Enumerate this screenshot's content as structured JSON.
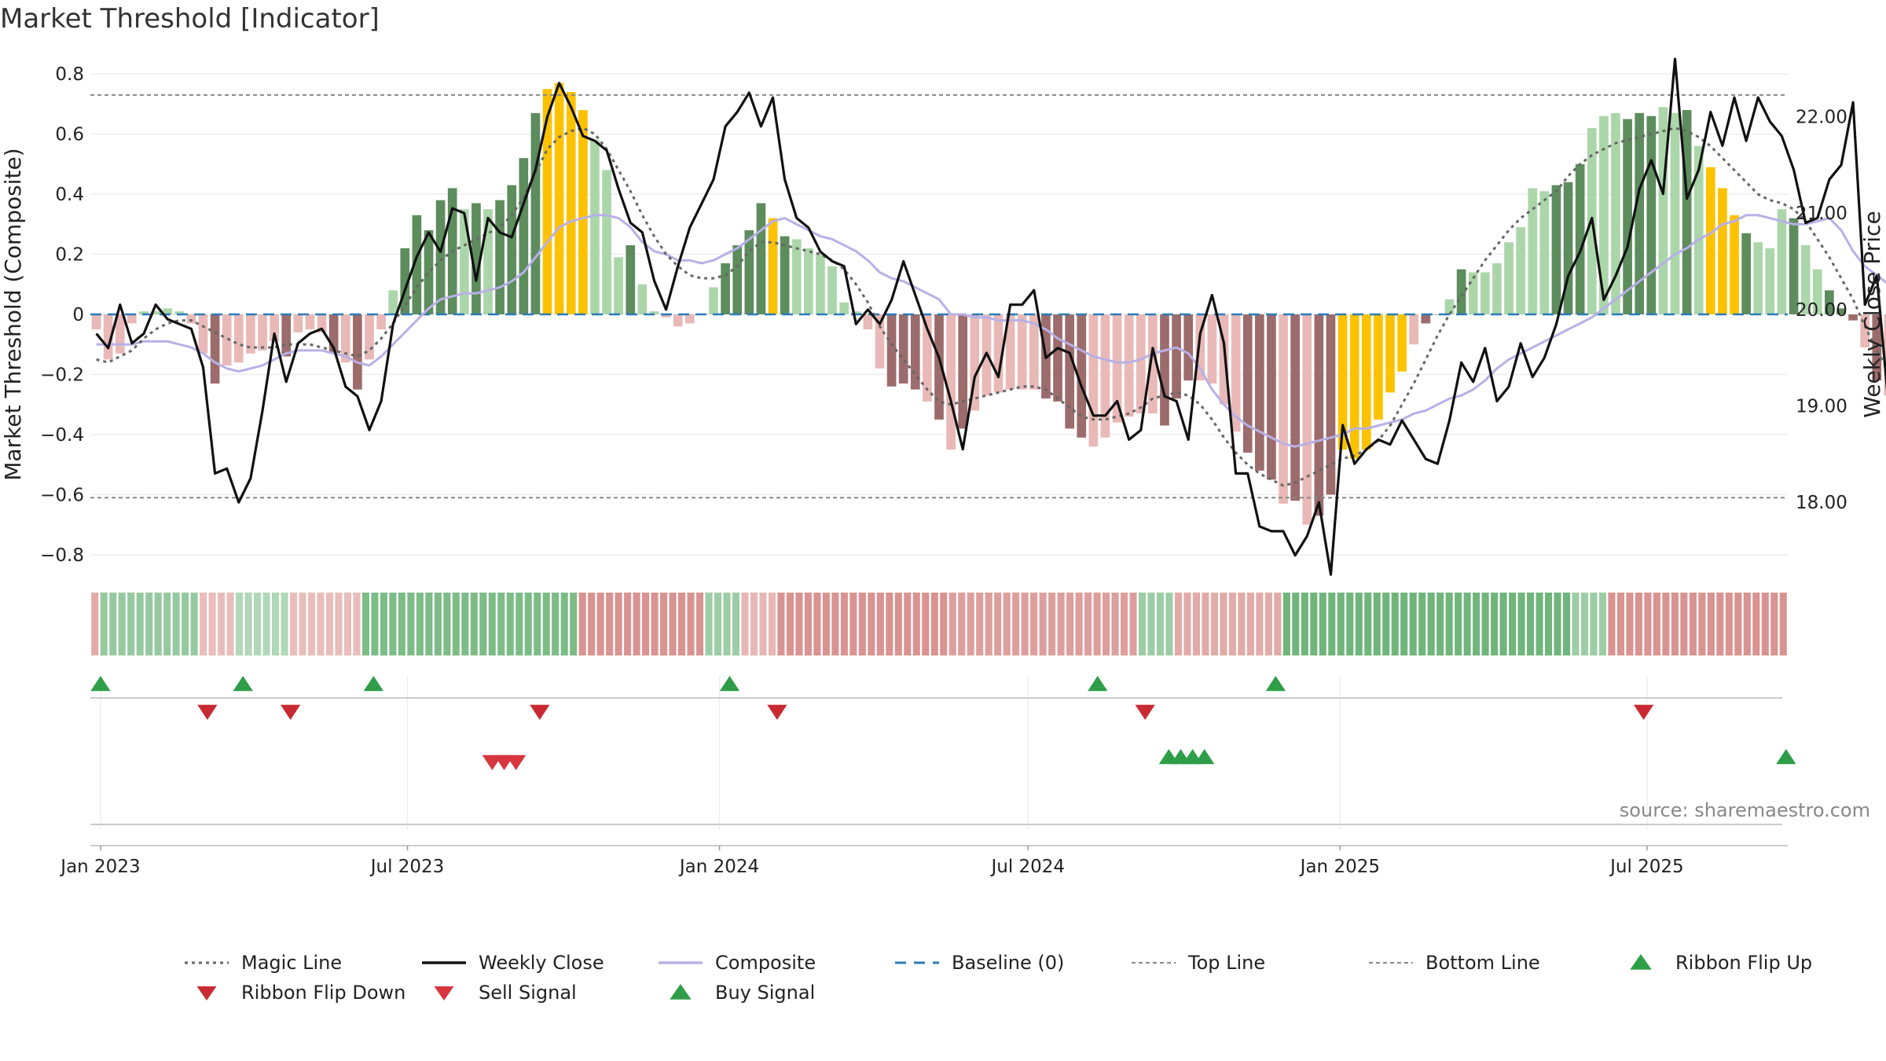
{
  "chart_data": {
    "type": "bar",
    "title": "Market Threshold [Indicator]",
    "ylabel": "Market Threshold (Composite)",
    "y2label": "Weekly Close Price",
    "ylim": [
      -0.85,
      0.85
    ],
    "y2lim": [
      17.3,
      22.6
    ],
    "yticks": [
      -0.8,
      -0.6,
      -0.4,
      -0.2,
      0,
      0.2,
      0.4,
      0.6,
      0.8
    ],
    "ytick_labels": [
      "−0.8",
      "−0.6",
      "−0.4",
      "−0.2",
      "0",
      "0.2",
      "0.4",
      "0.6",
      "0.8"
    ],
    "y2ticks": [
      18,
      19,
      20,
      21,
      22
    ],
    "y2tick_labels": [
      "18.00",
      "19.00",
      "20.00",
      "21.00",
      "22.00"
    ],
    "x_start": "2022-12-26",
    "x_end": "2025-09-22",
    "xticks": [
      "2023-01-01",
      "2023-07-01",
      "2024-01-01",
      "2024-07-01",
      "2025-01-01",
      "2025-07-01"
    ],
    "xtick_labels": [
      "Jan 2023",
      "Jul 2023",
      "Jan 2024",
      "Jul 2024",
      "Jan 2025",
      "Jul 2025"
    ],
    "top_line": 0.73,
    "bottom_line": -0.61,
    "baseline": 0,
    "grid": true,
    "legend_position": "bottom",
    "colors": {
      "bull_strong": "#5d8c5d",
      "bull_weak": "#abd6a9",
      "bear_strong": "#9c6b6b",
      "bear_weak": "#e9b9b7",
      "extreme": "#fcc200",
      "weekly_close": "#111111",
      "composite": "#b8b0e6",
      "magic_line": "#666666",
      "baseline": "#2b7bb9",
      "threshold_lines": "#888888",
      "buy": "#2e9e48",
      "sell": "#d7353f"
    },
    "composite_bars": [
      -0.05,
      -0.15,
      -0.13,
      -0.03,
      0.01,
      0.01,
      0.02,
      0.01,
      -0.03,
      -0.13,
      -0.23,
      -0.17,
      -0.16,
      -0.13,
      -0.12,
      -0.09,
      -0.14,
      -0.06,
      -0.05,
      -0.06,
      -0.13,
      -0.16,
      -0.25,
      -0.15,
      -0.05,
      0.08,
      0.22,
      0.33,
      0.28,
      0.38,
      0.42,
      0.35,
      0.37,
      0.35,
      0.38,
      0.43,
      0.52,
      0.67,
      0.75,
      0.77,
      0.74,
      0.68,
      0.58,
      0.48,
      0.19,
      0.23,
      0.1,
      0.01,
      -0.01,
      -0.04,
      -0.03,
      0.0,
      0.09,
      0.17,
      0.23,
      0.28,
      0.37,
      0.32,
      0.26,
      0.25,
      0.22,
      0.2,
      0.16,
      0.04,
      0.01,
      -0.05,
      -0.18,
      -0.24,
      -0.23,
      -0.25,
      -0.29,
      -0.35,
      -0.45,
      -0.38,
      -0.32,
      -0.27,
      -0.26,
      -0.25,
      -0.25,
      -0.25,
      -0.28,
      -0.29,
      -0.38,
      -0.41,
      -0.44,
      -0.41,
      -0.36,
      -0.34,
      -0.33,
      -0.33,
      -0.37,
      -0.28,
      -0.22,
      -0.22,
      -0.23,
      -0.3,
      -0.39,
      -0.46,
      -0.52,
      -0.55,
      -0.63,
      -0.62,
      -0.7,
      -0.67,
      -0.6,
      -0.45,
      -0.48,
      -0.45,
      -0.35,
      -0.26,
      -0.19,
      -0.1,
      -0.03,
      0.0,
      0.05,
      0.15,
      0.14,
      0.14,
      0.17,
      0.24,
      0.29,
      0.42,
      0.41,
      0.43,
      0.44,
      0.5,
      0.62,
      0.66,
      0.67,
      0.65,
      0.67,
      0.66,
      0.69,
      0.67,
      0.68,
      0.56,
      0.49,
      0.42,
      0.33,
      0.27,
      0.24,
      0.22,
      0.35,
      0.32,
      0.23,
      0.15,
      0.08,
      0.02,
      -0.02,
      -0.11,
      -0.22,
      -0.27,
      -0.37,
      -0.37,
      -0.38,
      -0.43,
      -0.48,
      -0.55,
      -0.64
    ],
    "bar_states": "nnwwwwwwnnsnnnnnsnnnsnsnnwssssswswsssseeeewwwswwwnnnwsssseswwwwwwwnssswsnsnnnnnnssssnnnnnnsssnnnnsssnsnsseeeeeenssnsnnnwwwwssswwwssswwsweeeswwwswwssswswwwwnsssssnsse",
    "weekly_close": [
      19.75,
      19.6,
      20.05,
      19.65,
      19.75,
      20.05,
      19.9,
      19.85,
      19.8,
      19.4,
      18.3,
      18.35,
      18.0,
      18.25,
      18.95,
      19.75,
      19.25,
      19.65,
      19.75,
      19.8,
      19.6,
      19.2,
      19.1,
      18.75,
      19.05,
      19.85,
      20.2,
      20.55,
      20.8,
      20.6,
      21.05,
      21.0,
      20.3,
      20.95,
      20.8,
      20.75,
      21.1,
      21.45,
      22.0,
      22.35,
      22.1,
      21.8,
      21.75,
      21.65,
      21.25,
      20.9,
      20.8,
      20.3,
      20.0,
      20.45,
      20.85,
      21.1,
      21.35,
      21.9,
      22.05,
      22.25,
      21.9,
      22.2,
      21.35,
      20.95,
      20.85,
      20.6,
      20.5,
      20.45,
      19.85,
      20.0,
      19.85,
      20.1,
      20.5,
      20.15,
      19.8,
      19.5,
      19.05,
      18.55,
      19.3,
      19.55,
      19.3,
      20.05,
      20.05,
      20.2,
      19.5,
      19.6,
      19.55,
      19.2,
      18.9,
      18.9,
      19.05,
      18.65,
      18.75,
      19.6,
      19.1,
      19.05,
      18.65,
      19.75,
      20.15,
      19.65,
      18.3,
      18.3,
      17.75,
      17.7,
      17.7,
      17.45,
      17.65,
      18.0,
      17.25,
      18.8,
      18.4,
      18.55,
      18.65,
      18.6,
      18.85,
      18.65,
      18.45,
      18.4,
      18.85,
      19.45,
      19.25,
      19.6,
      19.05,
      19.2,
      19.65,
      19.3,
      19.5,
      19.85,
      20.35,
      20.6,
      20.95,
      20.1,
      20.35,
      20.65,
      21.25,
      21.55,
      21.2,
      22.6,
      21.15,
      21.45,
      22.05,
      21.7,
      22.2,
      21.75,
      22.2,
      21.95,
      21.8,
      21.45,
      20.9,
      20.95,
      21.35,
      21.5,
      22.15,
      20.05,
      20.35,
      19.0,
      19.5,
      19.6,
      19.15,
      19.35,
      19.4,
      19.5,
      19.15,
      18.8,
      18.25
    ],
    "composite_line": [
      -0.1,
      -0.1,
      -0.1,
      -0.1,
      -0.09,
      -0.09,
      -0.09,
      -0.1,
      -0.11,
      -0.13,
      -0.16,
      -0.18,
      -0.19,
      -0.18,
      -0.17,
      -0.15,
      -0.13,
      -0.12,
      -0.12,
      -0.12,
      -0.13,
      -0.14,
      -0.16,
      -0.17,
      -0.14,
      -0.1,
      -0.06,
      -0.02,
      0.02,
      0.05,
      0.06,
      0.07,
      0.07,
      0.08,
      0.09,
      0.11,
      0.14,
      0.19,
      0.24,
      0.29,
      0.31,
      0.32,
      0.33,
      0.33,
      0.32,
      0.29,
      0.24,
      0.21,
      0.2,
      0.18,
      0.18,
      0.17,
      0.18,
      0.2,
      0.22,
      0.25,
      0.28,
      0.31,
      0.32,
      0.3,
      0.28,
      0.26,
      0.25,
      0.23,
      0.21,
      0.18,
      0.14,
      0.12,
      0.11,
      0.09,
      0.07,
      0.05,
      0.0,
      -0.0,
      -0.01,
      -0.01,
      -0.02,
      -0.02,
      -0.02,
      -0.03,
      -0.05,
      -0.08,
      -0.1,
      -0.12,
      -0.14,
      -0.15,
      -0.16,
      -0.16,
      -0.15,
      -0.13,
      -0.12,
      -0.11,
      -0.13,
      -0.18,
      -0.25,
      -0.3,
      -0.34,
      -0.37,
      -0.39,
      -0.41,
      -0.43,
      -0.44,
      -0.43,
      -0.42,
      -0.41,
      -0.4,
      -0.38,
      -0.38,
      -0.37,
      -0.36,
      -0.35,
      -0.33,
      -0.32,
      -0.3,
      -0.28,
      -0.27,
      -0.25,
      -0.22,
      -0.18,
      -0.15,
      -0.13,
      -0.11,
      -0.09,
      -0.07,
      -0.05,
      -0.03,
      -0.01,
      0.02,
      0.05,
      0.08,
      0.11,
      0.14,
      0.17,
      0.2,
      0.22,
      0.25,
      0.27,
      0.3,
      0.31,
      0.33,
      0.33,
      0.32,
      0.31,
      0.3,
      0.3,
      0.31,
      0.32,
      0.28,
      0.21,
      0.16,
      0.13,
      0.1,
      0.07,
      0.03,
      0.01,
      0.0,
      -0.03,
      -0.08,
      -0.14
    ],
    "magic_line": [
      -0.15,
      -0.16,
      -0.14,
      -0.12,
      -0.08,
      -0.05,
      -0.03,
      -0.02,
      -0.02,
      -0.04,
      -0.06,
      -0.08,
      -0.1,
      -0.11,
      -0.11,
      -0.11,
      -0.1,
      -0.1,
      -0.1,
      -0.11,
      -0.12,
      -0.13,
      -0.14,
      -0.12,
      -0.08,
      -0.03,
      0.03,
      0.09,
      0.14,
      0.18,
      0.21,
      0.23,
      0.25,
      0.27,
      0.29,
      0.33,
      0.39,
      0.47,
      0.55,
      0.59,
      0.61,
      0.62,
      0.6,
      0.55,
      0.48,
      0.41,
      0.33,
      0.26,
      0.2,
      0.16,
      0.13,
      0.12,
      0.12,
      0.13,
      0.16,
      0.21,
      0.24,
      0.24,
      0.23,
      0.22,
      0.21,
      0.2,
      0.18,
      0.15,
      0.1,
      0.04,
      -0.04,
      -0.1,
      -0.15,
      -0.2,
      -0.25,
      -0.29,
      -0.3,
      -0.29,
      -0.28,
      -0.27,
      -0.26,
      -0.25,
      -0.24,
      -0.24,
      -0.25,
      -0.28,
      -0.31,
      -0.34,
      -0.35,
      -0.35,
      -0.34,
      -0.33,
      -0.31,
      -0.28,
      -0.27,
      -0.26,
      -0.27,
      -0.3,
      -0.35,
      -0.41,
      -0.46,
      -0.5,
      -0.53,
      -0.55,
      -0.57,
      -0.56,
      -0.54,
      -0.52,
      -0.5,
      -0.48,
      -0.47,
      -0.45,
      -0.42,
      -0.37,
      -0.3,
      -0.23,
      -0.15,
      -0.07,
      -0.0,
      0.06,
      0.12,
      0.18,
      0.23,
      0.28,
      0.32,
      0.35,
      0.38,
      0.41,
      0.46,
      0.5,
      0.53,
      0.55,
      0.57,
      0.58,
      0.59,
      0.6,
      0.61,
      0.62,
      0.61,
      0.59,
      0.56,
      0.52,
      0.48,
      0.44,
      0.4,
      0.38,
      0.37,
      0.35,
      0.31,
      0.25,
      0.19,
      0.12,
      0.05,
      -0.04,
      -0.12,
      -0.19,
      -0.25,
      -0.3,
      -0.35,
      -0.38
    ],
    "ribbon_levels": [
      -0.35,
      0.45,
      0.45,
      0.45,
      0.45,
      0.45,
      0.45,
      0.45,
      0.45,
      0.45,
      0.45,
      0.45,
      -0.2,
      -0.2,
      -0.2,
      -0.2,
      0.25,
      0.25,
      0.25,
      0.25,
      0.25,
      0.25,
      -0.2,
      -0.2,
      -0.2,
      -0.2,
      -0.2,
      -0.2,
      -0.2,
      -0.2,
      0.65,
      0.65,
      0.65,
      0.65,
      0.65,
      0.65,
      0.65,
      0.65,
      0.65,
      0.65,
      0.65,
      0.65,
      0.65,
      0.65,
      0.65,
      0.65,
      0.65,
      0.65,
      0.65,
      0.65,
      0.65,
      0.65,
      0.65,
      0.65,
      -0.55,
      -0.55,
      -0.55,
      -0.55,
      -0.55,
      -0.55,
      -0.55,
      -0.55,
      -0.55,
      -0.55,
      -0.55,
      -0.55,
      -0.55,
      -0.55,
      0.4,
      0.4,
      0.4,
      0.4,
      -0.25,
      -0.25,
      -0.25,
      -0.25,
      -0.55,
      -0.55,
      -0.55,
      -0.55,
      -0.55,
      -0.55,
      -0.55,
      -0.55,
      -0.55,
      -0.55,
      -0.55,
      -0.55,
      -0.55,
      -0.55,
      -0.55,
      -0.55,
      -0.55,
      -0.55,
      -0.55,
      -0.45,
      -0.45,
      -0.45,
      -0.45,
      -0.45,
      -0.45,
      -0.45,
      -0.45,
      -0.45,
      -0.45,
      -0.45,
      -0.45,
      -0.45,
      -0.45,
      -0.45,
      -0.45,
      -0.45,
      -0.45,
      -0.45,
      -0.45,
      -0.45,
      0.4,
      0.4,
      0.4,
      0.4,
      -0.35,
      -0.35,
      -0.35,
      -0.35,
      -0.35,
      -0.35,
      -0.35,
      -0.35,
      -0.35,
      -0.35,
      -0.35,
      -0.35,
      0.75,
      0.75,
      0.75,
      0.75,
      0.75,
      0.75,
      0.75,
      0.75,
      0.75,
      0.75,
      0.75,
      0.75,
      0.75,
      0.75,
      0.75,
      0.75,
      0.75,
      0.75,
      0.75,
      0.75,
      0.75,
      0.75,
      0.75,
      0.75,
      0.75,
      0.75,
      0.75,
      0.75,
      0.75,
      0.75,
      0.75,
      0.75,
      0.4,
      0.4,
      0.4,
      0.4,
      -0.55,
      -0.55,
      -0.55,
      -0.55,
      -0.55,
      -0.55,
      -0.55,
      -0.55,
      -0.55,
      -0.55,
      -0.55,
      -0.55,
      -0.55,
      -0.55,
      -0.55,
      -0.55,
      -0.55,
      -0.55,
      -0.55,
      -0.55
    ],
    "ribbon_flip_up": [
      "2023-01-01",
      "2023-03-26",
      "2023-06-11",
      "2024-01-07",
      "2024-08-11",
      "2024-11-24"
    ],
    "ribbon_flip_down": [
      "2023-03-05",
      "2023-04-23",
      "2023-09-17",
      "2024-02-04",
      "2024-09-08",
      "2025-06-29"
    ],
    "sell_signals": [
      "2023-08-20",
      "2023-08-27",
      "2023-09-03"
    ],
    "buy_signals": [
      "2024-09-22",
      "2024-09-29",
      "2024-10-06",
      "2024-10-13",
      "2025-09-21"
    ],
    "source": "source: sharemaestro.com",
    "legend": [
      {
        "label": "Magic Line",
        "kind": "dotted"
      },
      {
        "label": "Weekly Close",
        "kind": "solid"
      },
      {
        "label": "Composite",
        "kind": "composite"
      },
      {
        "label": "Baseline (0)",
        "kind": "dashed"
      },
      {
        "label": "Top Line",
        "kind": "thin-dotted"
      },
      {
        "label": "Bottom Line",
        "kind": "thin-dotted"
      },
      {
        "label": "Ribbon Flip Up",
        "kind": "tri-up-dark"
      },
      {
        "label": "Ribbon Flip Down",
        "kind": "tri-down-dark"
      },
      {
        "label": "Sell Signal",
        "kind": "tri-down"
      },
      {
        "label": "Buy Signal",
        "kind": "tri-up"
      }
    ]
  }
}
